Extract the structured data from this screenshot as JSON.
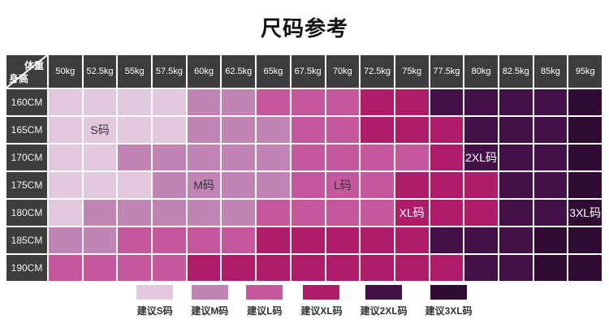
{
  "chart_data": {
    "type": "heatmap",
    "title": "尺码参考",
    "x_axis_label": "体重",
    "y_axis_label": "身高",
    "x_categories": [
      "50kg",
      "52.5kg",
      "55kg",
      "57.5kg",
      "60kg",
      "62.5kg",
      "65kg",
      "67.5kg",
      "70kg",
      "72.5kg",
      "75kg",
      "77.5kg",
      "80kg",
      "82.5kg",
      "85kg",
      "95kg"
    ],
    "y_categories": [
      "160CM",
      "165CM",
      "170CM",
      "175CM",
      "180CM",
      "185CM",
      "190CM"
    ],
    "values": [
      [
        "S",
        "S",
        "S",
        "S",
        "M",
        "M",
        "L",
        "L",
        "L",
        "XL",
        "XL",
        "2XL",
        "2XL",
        "2XL",
        "2XL",
        "3XL"
      ],
      [
        "S",
        "S",
        "S",
        "S",
        "M",
        "M",
        "M",
        "L",
        "L",
        "XL",
        "XL",
        "XL",
        "2XL",
        "2XL",
        "2XL",
        "3XL"
      ],
      [
        "S",
        "S",
        "M",
        "M",
        "M",
        "M",
        "M",
        "L",
        "L",
        "L",
        "L",
        "XL",
        "2XL",
        "2XL",
        "2XL",
        "3XL"
      ],
      [
        "S",
        "S",
        "S",
        "M",
        "M",
        "M",
        "M",
        "L",
        "L",
        "L",
        "XL",
        "XL",
        "XL",
        "2XL",
        "2XL",
        "3XL"
      ],
      [
        "S",
        "M",
        "M",
        "M",
        "M",
        "M",
        "L",
        "L",
        "L",
        "L",
        "XL",
        "XL",
        "XL",
        "2XL",
        "2XL",
        "3XL"
      ],
      [
        "M",
        "M",
        "L",
        "L",
        "L",
        "L",
        "XL",
        "XL",
        "XL",
        "XL",
        "XL",
        "2XL",
        "2XL",
        "2XL",
        "3XL",
        "3XL"
      ],
      [
        "L",
        "L",
        "L",
        "L",
        "XL",
        "XL",
        "XL",
        "XL",
        "XL",
        "XL",
        "XL",
        "XL",
        "2XL",
        "2XL",
        "3XL",
        "3XL"
      ]
    ],
    "annotations": [
      {
        "row": 1,
        "col": 1,
        "text": "S码"
      },
      {
        "row": 3,
        "col": 4,
        "text": "M码"
      },
      {
        "row": 3,
        "col": 8,
        "text": "L码"
      },
      {
        "row": 4,
        "col": 10,
        "text": "XL码"
      },
      {
        "row": 2,
        "col": 12,
        "text": "2XL码"
      },
      {
        "row": 4,
        "col": 15,
        "text": "3XL码"
      }
    ],
    "legend": [
      "建议S码",
      "建议M码",
      "建议L码",
      "建议XL码",
      "建议2XL码",
      "建议3XL码"
    ],
    "legend_position": "bottom"
  },
  "sizes": [
    {
      "code": "S",
      "cell_label": "S码",
      "legend_label": "建议S码",
      "color": "#e2c8df",
      "text_color": "#333333"
    },
    {
      "code": "M",
      "cell_label": "M码",
      "legend_label": "建议M码",
      "color": "#c184b4",
      "text_color": "#333333"
    },
    {
      "code": "L",
      "cell_label": "L码",
      "legend_label": "建议L码",
      "color": "#c6589d",
      "text_color": "#333333"
    },
    {
      "code": "XL",
      "cell_label": "XL码",
      "legend_label": "建议XL码",
      "color": "#ae1c6a",
      "text_color": "#ffffff"
    },
    {
      "code": "2XL",
      "cell_label": "2XL码",
      "legend_label": "建议2XL码",
      "color": "#431049",
      "text_color": "#ffffff"
    },
    {
      "code": "3XL",
      "cell_label": "3XL码",
      "legend_label": "建议3XL码",
      "color": "#300b34",
      "text_color": "#ffffff"
    }
  ],
  "colors": {
    "header_bg": "#3d3d3d",
    "header_text": "#ffffff",
    "grid_line": "#ffffff",
    "page_bg": "#ffffff",
    "title_color": "#111111"
  }
}
